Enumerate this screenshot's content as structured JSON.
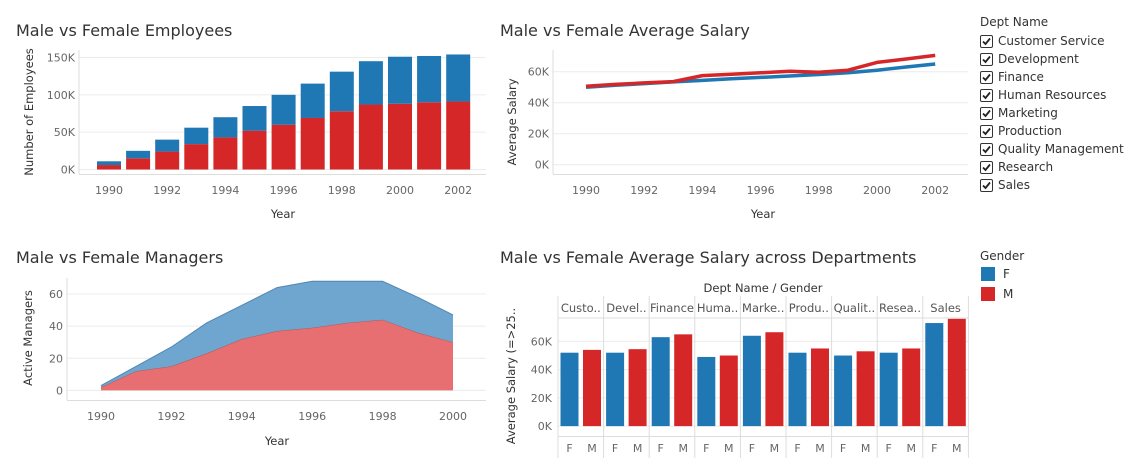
{
  "colors": {
    "female": "#1f77b4",
    "male": "#d62728",
    "grid": "#ececec"
  },
  "filter": {
    "title": "Dept Name",
    "items": [
      {
        "label": "Customer Service",
        "checked": true
      },
      {
        "label": "Development",
        "checked": true
      },
      {
        "label": "Finance",
        "checked": true
      },
      {
        "label": "Human Resources",
        "checked": true
      },
      {
        "label": "Marketing",
        "checked": true
      },
      {
        "label": "Production",
        "checked": true
      },
      {
        "label": "Quality Management",
        "checked": true
      },
      {
        "label": "Research",
        "checked": true
      },
      {
        "label": "Sales",
        "checked": true
      }
    ]
  },
  "legend": {
    "title": "Gender",
    "items": [
      {
        "label": "F",
        "color": "#1f77b4"
      },
      {
        "label": "M",
        "color": "#d62728"
      }
    ]
  },
  "chart_data": [
    {
      "id": "employees",
      "type": "bar",
      "stacked": true,
      "title": "Male vs Female Employees",
      "xlabel": "Year",
      "ylabel": "Number of Employees",
      "x": [
        1990,
        1991,
        1992,
        1993,
        1994,
        1995,
        1996,
        1997,
        1998,
        1999,
        2000,
        2001,
        2002
      ],
      "xticks": [
        1990,
        1992,
        1994,
        1996,
        1998,
        2000,
        2002
      ],
      "xtick_labels": [
        "1990",
        "1992",
        "1994",
        "1996",
        "1998",
        "2000",
        "2002"
      ],
      "yticks": [
        0,
        50000,
        100000,
        150000
      ],
      "ytick_labels": [
        "0K",
        "50K",
        "100K",
        "150K"
      ],
      "ylim": [
        -6000,
        160000
      ],
      "series": [
        {
          "name": "M",
          "color": "#d62728",
          "values": [
            6000,
            15000,
            24000,
            34000,
            43000,
            52000,
            60000,
            69000,
            78000,
            87000,
            88000,
            90000,
            91000
          ]
        },
        {
          "name": "F",
          "color": "#1f77b4",
          "values": [
            5000,
            10000,
            16000,
            22000,
            27000,
            33000,
            40000,
            46000,
            53000,
            58000,
            63000,
            62000,
            63000
          ]
        }
      ]
    },
    {
      "id": "salary",
      "type": "line",
      "title": "Male vs Female Average Salary",
      "xlabel": "Year",
      "ylabel": "Average Salary",
      "x": [
        1990,
        1991,
        1992,
        1993,
        1994,
        1995,
        1996,
        1997,
        1998,
        1999,
        2000,
        2001,
        2002
      ],
      "xticks": [
        1990,
        1992,
        1994,
        1996,
        1998,
        2000,
        2002
      ],
      "xtick_labels": [
        "1990",
        "1992",
        "1994",
        "1996",
        "1998",
        "2000",
        "2002"
      ],
      "yticks": [
        0,
        20000,
        40000,
        60000
      ],
      "ytick_labels": [
        "0K",
        "20K",
        "40K",
        "60K"
      ],
      "ylim": [
        -6000,
        74000
      ],
      "series": [
        {
          "name": "F",
          "color": "#1f77b4",
          "values": [
            50000,
            51200,
            52300,
            53400,
            54400,
            55400,
            56300,
            57200,
            58200,
            59300,
            61000,
            63000,
            65000
          ]
        },
        {
          "name": "M",
          "color": "#d62728",
          "values": [
            50600,
            51800,
            52800,
            53600,
            57500,
            58400,
            59300,
            60300,
            59600,
            61000,
            66000,
            68200,
            70500
          ]
        }
      ]
    },
    {
      "id": "managers",
      "type": "area",
      "stacked": true,
      "title": "Male vs Female Managers",
      "xlabel": "Year",
      "ylabel": "Active Managers",
      "x": [
        1990,
        1991,
        1992,
        1993,
        1994,
        1995,
        1996,
        1997,
        1998,
        1999,
        2000
      ],
      "xticks": [
        1990,
        1992,
        1994,
        1996,
        1998,
        2000
      ],
      "xtick_labels": [
        "1990",
        "1992",
        "1994",
        "1996",
        "1998",
        "2000"
      ],
      "yticks": [
        0,
        20,
        40,
        60
      ],
      "ytick_labels": [
        "0",
        "20",
        "40",
        "60"
      ],
      "ylim": [
        -6,
        70
      ],
      "series": [
        {
          "name": "M",
          "color": "#e86f71",
          "values": [
            2,
            12,
            15,
            23,
            32,
            37,
            39,
            42,
            44,
            36,
            30
          ]
        },
        {
          "name": "F",
          "color": "#6fa6cf",
          "values": [
            1,
            3,
            12,
            19,
            21,
            27,
            29,
            26,
            24,
            22,
            17
          ]
        }
      ]
    },
    {
      "id": "dept_salary",
      "type": "bar",
      "title": "Male vs Female Average Salary across Departments",
      "header": "Dept Name  /  Gender",
      "ylabel": "Average Salary (=>25..",
      "categories": [
        "Custo..",
        "Devel..",
        "Finance",
        "Huma..",
        "Marke..",
        "Produ..",
        "Qualit..",
        "Resea..",
        "Sales"
      ],
      "gender_labels": [
        "F",
        "M"
      ],
      "yticks": [
        0,
        20000,
        40000,
        60000
      ],
      "ytick_labels": [
        "0K",
        "20K",
        "40K",
        "60K"
      ],
      "ylim": [
        -7000,
        78000
      ],
      "series": [
        {
          "name": "F",
          "color": "#1f77b4",
          "values": [
            52000,
            52000,
            63000,
            49000,
            64000,
            52000,
            50000,
            52000,
            73000
          ]
        },
        {
          "name": "M",
          "color": "#d62728",
          "values": [
            54000,
            54500,
            65000,
            50000,
            66500,
            55000,
            53000,
            55000,
            76000
          ]
        }
      ]
    }
  ]
}
